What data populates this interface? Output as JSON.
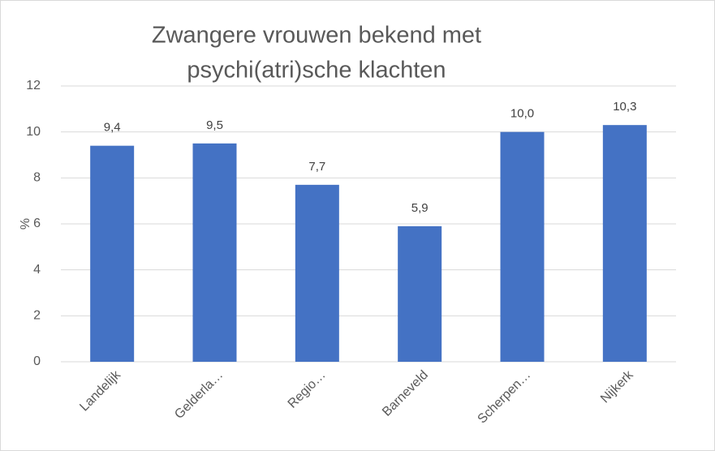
{
  "chart_data": {
    "type": "bar",
    "title": [
      "Zwangere vrouwen bekend met",
      "psychi(atri)sche klachten"
    ],
    "ylabel": "%",
    "categories": [
      "Landelijk",
      "Gelderla…",
      "Regio…",
      "Barneveld",
      "Scherpen…",
      "Nijkerk"
    ],
    "values": [
      9.4,
      9.5,
      7.7,
      5.9,
      10.0,
      10.3
    ],
    "value_labels": [
      "9,4",
      "9,5",
      "7,7",
      "5,9",
      "10,0",
      "10,3"
    ],
    "color": "#4472c4",
    "ylim": [
      0,
      12
    ],
    "yticks": [
      0,
      2,
      4,
      6,
      8,
      10,
      12
    ],
    "grid": true
  }
}
